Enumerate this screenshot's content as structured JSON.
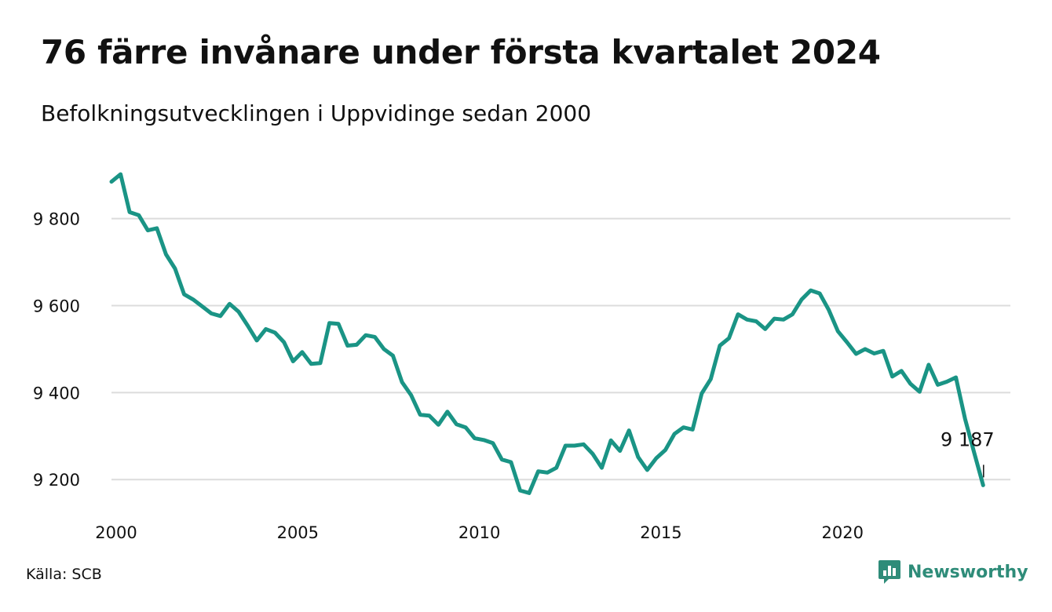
{
  "title": "76 färre invånare under första kvartalet 2024",
  "subtitle": "Befolkningsutvecklingen i Uppvidinge sedan 2000",
  "source": "Källa: SCB",
  "brand": {
    "name": "Newsworthy",
    "icon": "newsworthy-logo-icon",
    "color": "#2e8c79"
  },
  "chart_data": {
    "type": "line",
    "title": "76 färre invånare under första kvartalet 2024",
    "subtitle": "Befolkningsutvecklingen i Uppvidinge sedan 2000",
    "xlabel": "",
    "ylabel": "",
    "x_ticks": [
      "2000",
      "2005",
      "2010",
      "2015",
      "2020"
    ],
    "x_tick_values": [
      2000,
      2005,
      2010,
      2015,
      2020
    ],
    "y_ticks": [
      9200,
      9400,
      9600,
      9800
    ],
    "y_tick_labels": [
      "9 200",
      "9 400",
      "9 600",
      "9 800"
    ],
    "xlim": [
      2000,
      2024.75
    ],
    "ylim": [
      9130,
      9960
    ],
    "grid": "horizontal",
    "line_color": "#1a9485",
    "end_label": "9 187",
    "series": [
      {
        "x": [
          2000.0,
          2000.25,
          2000.5,
          2000.75,
          2001.0,
          2001.25,
          2001.5,
          2001.75,
          2002.0,
          2002.25,
          2002.5,
          2002.75,
          2003.0,
          2003.25,
          2003.5,
          2003.75,
          2004.0,
          2004.25,
          2004.5,
          2004.75,
          2005.0,
          2005.25,
          2005.5,
          2005.75,
          2006.0,
          2006.25,
          2006.5,
          2006.75,
          2007.0,
          2007.25,
          2007.5,
          2007.75,
          2008.0,
          2008.25,
          2008.5,
          2008.75,
          2009.0,
          2009.25,
          2009.5,
          2009.75,
          2010.0,
          2010.25,
          2010.5,
          2010.75,
          2011.0,
          2011.25,
          2011.5,
          2011.75,
          2012.0,
          2012.25,
          2012.5,
          2012.75,
          2013.0,
          2013.25,
          2013.5,
          2013.75,
          2014.0,
          2014.25,
          2014.5,
          2014.75,
          2015.0,
          2015.25,
          2015.5,
          2015.75,
          2016.0,
          2016.25,
          2016.5,
          2016.75,
          2017.0,
          2017.25,
          2017.5,
          2017.75,
          2018.0,
          2018.25,
          2018.5,
          2018.75,
          2019.0,
          2019.25,
          2019.5,
          2019.75,
          2020.0,
          2020.25,
          2020.5,
          2020.75,
          2021.0,
          2021.25,
          2021.5,
          2021.75,
          2022.0,
          2022.25,
          2022.5,
          2022.75,
          2023.0,
          2023.25,
          2023.5,
          2023.75,
          2024.0
        ],
        "values": [
          9885,
          9902,
          9815,
          9808,
          9773,
          9778,
          9718,
          9685,
          9626,
          9614,
          9598,
          9582,
          9576,
          9604,
          9586,
          9554,
          9520,
          9546,
          9538,
          9516,
          9472,
          9493,
          9466,
          9468,
          9560,
          9558,
          9508,
          9510,
          9532,
          9528,
          9500,
          9485,
          9424,
          9394,
          9349,
          9347,
          9326,
          9356,
          9327,
          9320,
          9295,
          9291,
          9284,
          9246,
          9240,
          9175,
          9169,
          9219,
          9216,
          9227,
          9278,
          9278,
          9281,
          9259,
          9227,
          9290,
          9266,
          9313,
          9252,
          9222,
          9249,
          9268,
          9305,
          9320,
          9315,
          9398,
          9431,
          9508,
          9525,
          9580,
          9568,
          9564,
          9546,
          9570,
          9568,
          9580,
          9614,
          9635,
          9628,
          9590,
          9541,
          9516,
          9489,
          9500,
          9490,
          9496,
          9437,
          9450,
          9420,
          9402,
          9464,
          9418,
          9425,
          9435,
          9340,
          9263,
          9187
        ]
      }
    ]
  }
}
